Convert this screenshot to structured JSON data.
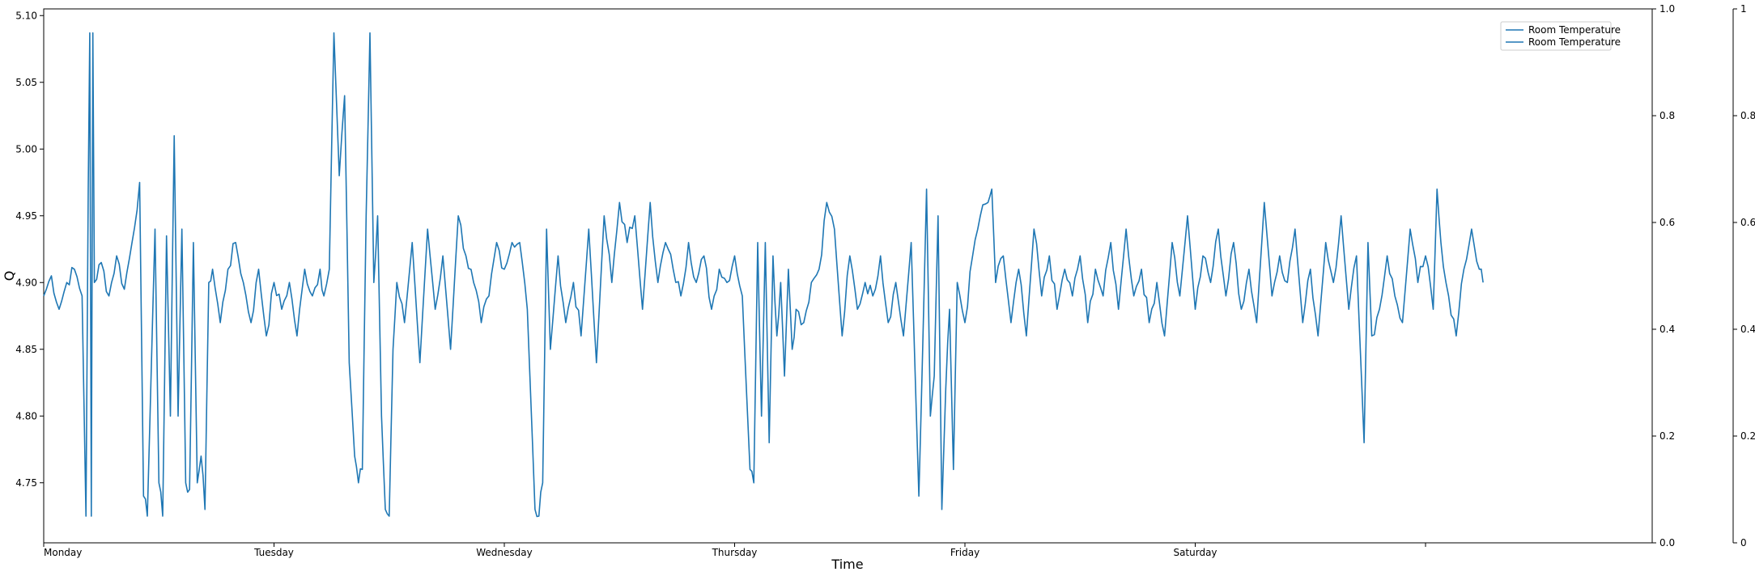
{
  "chart_data": {
    "type": "line",
    "xlabel": "Time",
    "ylabel": "Q",
    "ylim": [
      4.705,
      5.105
    ],
    "yticks": [
      "4.75",
      "4.80",
      "4.85",
      "4.90",
      "4.95",
      "5.00",
      "5.05",
      "5.10"
    ],
    "x_categories": [
      "Monday",
      "Tuesday",
      "Wednesday",
      "Thursday",
      "Friday",
      "Saturday",
      ""
    ],
    "right_axis_1": {
      "ylim": [
        0,
        1
      ],
      "ticks": [
        "0.0",
        "0.2",
        "0.4",
        "0.6",
        "0.8",
        "1.0"
      ]
    },
    "right_axis_2": {
      "ylim": [
        0,
        1
      ],
      "ticks": [
        "0",
        "0.2",
        "0.4",
        "0.6",
        "0.8",
        "1"
      ]
    },
    "legend": {
      "position": "top-right",
      "entries": [
        "Room Temperature",
        "Room Temperature"
      ]
    },
    "line_color": "#1f77b4",
    "series": [
      {
        "name": "Room Temperature",
        "anchors": [
          [
            0.0,
            4.89
          ],
          [
            0.1,
            4.905
          ],
          [
            0.2,
            4.88
          ],
          [
            0.3,
            4.9
          ],
          [
            0.4,
            4.91
          ],
          [
            0.5,
            4.89
          ],
          [
            0.55,
            4.725
          ],
          [
            0.58,
            4.97
          ],
          [
            0.6,
            5.087
          ],
          [
            0.62,
            4.725
          ],
          [
            0.64,
            5.087
          ],
          [
            0.66,
            4.9
          ],
          [
            0.75,
            4.915
          ],
          [
            0.85,
            4.89
          ],
          [
            0.95,
            4.92
          ],
          [
            1.05,
            4.895
          ],
          [
            1.15,
            4.93
          ],
          [
            1.25,
            4.975
          ],
          [
            1.3,
            4.74
          ],
          [
            1.35,
            4.725
          ],
          [
            1.45,
            4.94
          ],
          [
            1.5,
            4.75
          ],
          [
            1.55,
            4.725
          ],
          [
            1.6,
            4.935
          ],
          [
            1.65,
            4.8
          ],
          [
            1.7,
            5.01
          ],
          [
            1.75,
            4.8
          ],
          [
            1.8,
            4.94
          ],
          [
            1.85,
            4.75
          ],
          [
            1.9,
            4.745
          ],
          [
            1.95,
            4.93
          ],
          [
            2.0,
            4.75
          ],
          [
            2.05,
            4.77
          ],
          [
            2.1,
            4.73
          ],
          [
            2.15,
            4.9
          ],
          [
            2.2,
            4.91
          ],
          [
            2.3,
            4.87
          ],
          [
            2.4,
            4.91
          ],
          [
            2.5,
            4.93
          ],
          [
            2.6,
            4.9
          ],
          [
            2.7,
            4.87
          ],
          [
            2.8,
            4.91
          ],
          [
            2.9,
            4.86
          ],
          [
            3.0,
            4.9
          ],
          [
            3.1,
            4.88
          ],
          [
            3.2,
            4.9
          ],
          [
            3.3,
            4.86
          ],
          [
            3.4,
            4.91
          ],
          [
            3.5,
            4.89
          ],
          [
            3.6,
            4.91
          ],
          [
            3.65,
            4.89
          ],
          [
            3.72,
            4.91
          ],
          [
            3.78,
            5.087
          ],
          [
            3.85,
            4.98
          ],
          [
            3.92,
            5.04
          ],
          [
            3.98,
            4.84
          ],
          [
            4.05,
            4.77
          ],
          [
            4.1,
            4.75
          ],
          [
            4.15,
            4.76
          ],
          [
            4.2,
            4.95
          ],
          [
            4.25,
            5.087
          ],
          [
            4.3,
            4.9
          ],
          [
            4.35,
            4.95
          ],
          [
            4.4,
            4.8
          ],
          [
            4.45,
            4.73
          ],
          [
            4.5,
            4.725
          ],
          [
            4.55,
            4.85
          ],
          [
            4.6,
            4.9
          ],
          [
            4.7,
            4.87
          ],
          [
            4.8,
            4.93
          ],
          [
            4.9,
            4.84
          ],
          [
            5.0,
            4.94
          ],
          [
            5.1,
            4.88
          ],
          [
            5.2,
            4.92
          ],
          [
            5.3,
            4.85
          ],
          [
            5.4,
            4.95
          ],
          [
            5.5,
            4.92
          ],
          [
            5.6,
            4.9
          ],
          [
            5.7,
            4.87
          ],
          [
            5.8,
            4.89
          ],
          [
            5.9,
            4.93
          ],
          [
            6.0,
            4.91
          ],
          [
            6.1,
            4.93
          ],
          [
            6.2,
            4.93
          ],
          [
            6.3,
            4.88
          ],
          [
            6.4,
            4.73
          ],
          [
            6.45,
            4.725
          ],
          [
            6.5,
            4.75
          ],
          [
            6.55,
            4.94
          ],
          [
            6.6,
            4.85
          ],
          [
            6.7,
            4.92
          ],
          [
            6.8,
            4.87
          ],
          [
            6.9,
            4.9
          ],
          [
            7.0,
            4.86
          ],
          [
            7.1,
            4.94
          ],
          [
            7.2,
            4.84
          ],
          [
            7.3,
            4.95
          ],
          [
            7.4,
            4.9
          ],
          [
            7.5,
            4.96
          ],
          [
            7.6,
            4.93
          ],
          [
            7.7,
            4.95
          ],
          [
            7.8,
            4.88
          ],
          [
            7.9,
            4.96
          ],
          [
            8.0,
            4.9
          ],
          [
            8.1,
            4.93
          ],
          [
            8.2,
            4.91
          ],
          [
            8.3,
            4.89
          ],
          [
            8.4,
            4.93
          ],
          [
            8.5,
            4.9
          ],
          [
            8.6,
            4.92
          ],
          [
            8.7,
            4.88
          ],
          [
            8.8,
            4.91
          ],
          [
            8.9,
            4.9
          ],
          [
            9.0,
            4.92
          ],
          [
            9.1,
            4.89
          ],
          [
            9.2,
            4.76
          ],
          [
            9.25,
            4.75
          ],
          [
            9.3,
            4.93
          ],
          [
            9.35,
            4.8
          ],
          [
            9.4,
            4.93
          ],
          [
            9.45,
            4.78
          ],
          [
            9.5,
            4.92
          ],
          [
            9.55,
            4.86
          ],
          [
            9.6,
            4.9
          ],
          [
            9.65,
            4.83
          ],
          [
            9.7,
            4.91
          ],
          [
            9.75,
            4.85
          ],
          [
            9.8,
            4.88
          ],
          [
            9.9,
            4.87
          ],
          [
            10.0,
            4.9
          ],
          [
            10.1,
            4.91
          ],
          [
            10.2,
            4.96
          ],
          [
            10.3,
            4.94
          ],
          [
            10.4,
            4.86
          ],
          [
            10.5,
            4.92
          ],
          [
            10.6,
            4.88
          ],
          [
            10.7,
            4.9
          ],
          [
            10.8,
            4.89
          ],
          [
            10.9,
            4.92
          ],
          [
            11.0,
            4.87
          ],
          [
            11.1,
            4.9
          ],
          [
            11.2,
            4.86
          ],
          [
            11.3,
            4.93
          ],
          [
            11.4,
            4.74
          ],
          [
            11.45,
            4.85
          ],
          [
            11.5,
            4.97
          ],
          [
            11.55,
            4.8
          ],
          [
            11.6,
            4.83
          ],
          [
            11.65,
            4.95
          ],
          [
            11.7,
            4.73
          ],
          [
            11.75,
            4.82
          ],
          [
            11.8,
            4.88
          ],
          [
            11.85,
            4.76
          ],
          [
            11.9,
            4.9
          ],
          [
            12.0,
            4.87
          ],
          [
            12.1,
            4.92
          ],
          [
            12.2,
            4.95
          ],
          [
            12.3,
            4.96
          ],
          [
            12.35,
            4.97
          ],
          [
            12.4,
            4.9
          ],
          [
            12.5,
            4.92
          ],
          [
            12.6,
            4.87
          ],
          [
            12.7,
            4.91
          ],
          [
            12.8,
            4.86
          ],
          [
            12.9,
            4.94
          ],
          [
            13.0,
            4.89
          ],
          [
            13.1,
            4.92
          ],
          [
            13.2,
            4.88
          ],
          [
            13.3,
            4.91
          ],
          [
            13.4,
            4.89
          ],
          [
            13.5,
            4.92
          ],
          [
            13.6,
            4.87
          ],
          [
            13.7,
            4.91
          ],
          [
            13.8,
            4.89
          ],
          [
            13.9,
            4.93
          ],
          [
            14.0,
            4.88
          ],
          [
            14.1,
            4.94
          ],
          [
            14.2,
            4.89
          ],
          [
            14.3,
            4.91
          ],
          [
            14.4,
            4.87
          ],
          [
            14.5,
            4.9
          ],
          [
            14.6,
            4.86
          ],
          [
            14.7,
            4.93
          ],
          [
            14.8,
            4.89
          ],
          [
            14.9,
            4.95
          ],
          [
            15.0,
            4.88
          ],
          [
            15.1,
            4.92
          ],
          [
            15.2,
            4.9
          ],
          [
            15.3,
            4.94
          ],
          [
            15.4,
            4.89
          ],
          [
            15.5,
            4.93
          ],
          [
            15.6,
            4.88
          ],
          [
            15.7,
            4.91
          ],
          [
            15.8,
            4.87
          ],
          [
            15.9,
            4.96
          ],
          [
            16.0,
            4.89
          ],
          [
            16.1,
            4.92
          ],
          [
            16.2,
            4.9
          ],
          [
            16.3,
            4.94
          ],
          [
            16.4,
            4.87
          ],
          [
            16.5,
            4.91
          ],
          [
            16.6,
            4.86
          ],
          [
            16.7,
            4.93
          ],
          [
            16.8,
            4.9
          ],
          [
            16.9,
            4.95
          ],
          [
            17.0,
            4.88
          ],
          [
            17.1,
            4.92
          ],
          [
            17.2,
            4.78
          ],
          [
            17.25,
            4.93
          ],
          [
            17.3,
            4.86
          ],
          [
            17.4,
            4.88
          ],
          [
            17.5,
            4.92
          ],
          [
            17.6,
            4.89
          ],
          [
            17.7,
            4.87
          ],
          [
            17.8,
            4.94
          ],
          [
            17.9,
            4.9
          ],
          [
            18.0,
            4.92
          ],
          [
            18.1,
            4.88
          ],
          [
            18.15,
            4.97
          ],
          [
            18.2,
            4.93
          ],
          [
            18.3,
            4.89
          ],
          [
            18.4,
            4.86
          ],
          [
            18.5,
            4.91
          ],
          [
            18.6,
            4.94
          ],
          [
            18.7,
            4.91
          ],
          [
            18.75,
            4.9
          ]
        ]
      }
    ]
  }
}
